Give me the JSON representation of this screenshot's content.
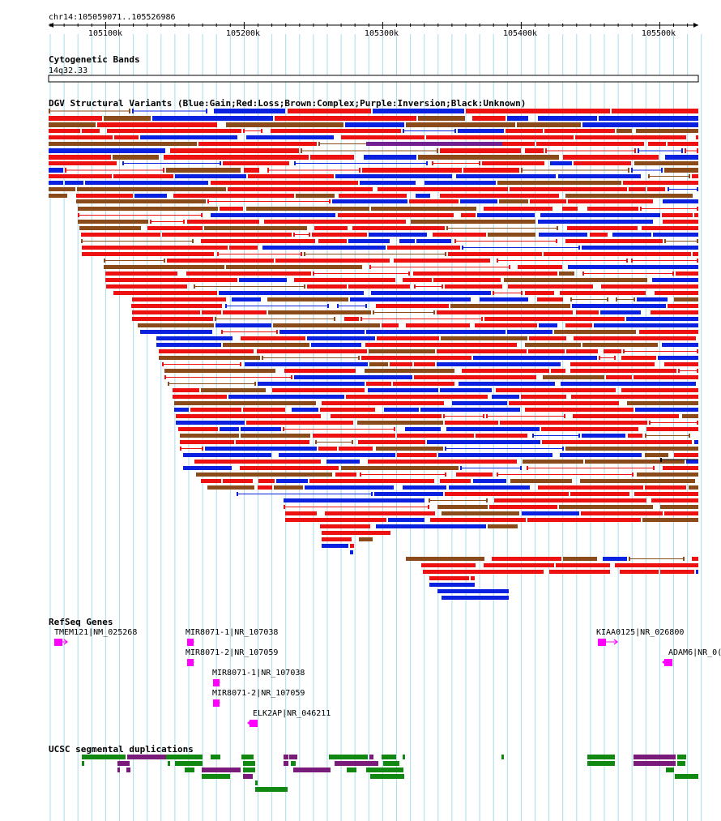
{
  "header": {
    "position": "chr14:105059071..105526986",
    "ticks": [
      "105100k",
      "105200k",
      "105300k",
      "105400k",
      "105500k"
    ]
  },
  "tracks": {
    "cytoband": {
      "title": "Cytogenetic Bands",
      "band": "14q32.33"
    },
    "dgv": {
      "title": "DGV Structural Variants (Blue:Gain;Red:Loss;Brown:Complex;Purple:Inversion;Black:Unknown)",
      "colors": {
        "gain": "#0a22e0",
        "loss": "#ee1111",
        "complex": "#8b4a1a",
        "inversion": "#702090",
        "unknown": "#000000"
      }
    },
    "refseq": {
      "title": "RefSeq Genes",
      "gene_color": "#ff00ff",
      "genes": [
        {
          "label": "TMEM121|NM_025268",
          "strand": "+"
        },
        {
          "label": "MIR8071-1|NR_107038",
          "strand": "+"
        },
        {
          "label": "MIR8071-2|NR_107059",
          "strand": "+"
        },
        {
          "label": "MIR8071-1|NR_107038",
          "strand": "+"
        },
        {
          "label": "MIR8071-2|NR_107059",
          "strand": "+"
        },
        {
          "label": "ELK2AP|NR_046211",
          "strand": "-"
        },
        {
          "label": "KIAA0125|NR_026800",
          "strand": "+"
        },
        {
          "label": "ADAM6|NR_0(",
          "strand": "-"
        }
      ]
    },
    "segdups": {
      "title": "UCSC segmental duplications",
      "colors": {
        "green": "#118811",
        "purple": "#7a1a7a"
      }
    }
  }
}
